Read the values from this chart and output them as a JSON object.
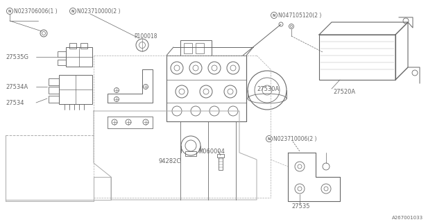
{
  "bg_color": "#ffffff",
  "line_color": "#aaaaaa",
  "dark_line": "#666666",
  "labels": {
    "N023706006": "N023706006(1 )",
    "N023710000": "N023710000(2 )",
    "P100018": "P100018",
    "27535G": "27535G",
    "27534A": "27534A",
    "27534": "27534",
    "27530A": "27530A",
    "N047105120": "N047105120(2 )",
    "27520A": "27520A",
    "N023710006": "N023710006(2 )",
    "M060004": "M060004",
    "94282C": "94282C",
    "27535": "27535",
    "A267001033": "A267001033"
  },
  "font_size": 6.0,
  "small_font": 5.0
}
